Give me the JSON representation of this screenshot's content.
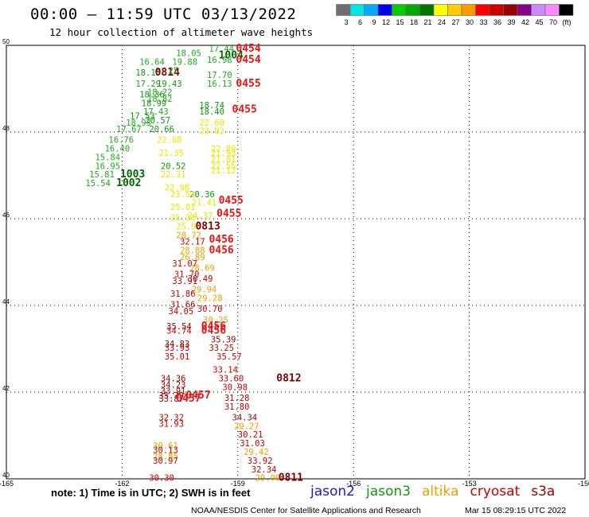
{
  "header": {
    "title": "00:00 – 11:59 UTC 03/13/2022",
    "subtitle": "12 hour collection of altimeter wave heights"
  },
  "colorbar": {
    "colors": [
      "#6e6e6e",
      "#00e5e5",
      "#00aaff",
      "#0000ee",
      "#00cc00",
      "#00aa00",
      "#007700",
      "#ffff00",
      "#ffcc00",
      "#ff9900",
      "#ff0000",
      "#cc0000",
      "#990000",
      "#880088",
      "#cc88ff",
      "#ff88ff",
      "#000000"
    ],
    "labels": [
      "3",
      "6",
      "9",
      "12",
      "15",
      "18",
      "21",
      "24",
      "27",
      "30",
      "33",
      "36",
      "39",
      "42",
      "45",
      "70",
      "(ft)"
    ]
  },
  "footer": {
    "note": "note: 1) Time is in UTC; 2) SWH is in feet",
    "credit": "NOAA/NESDIS Center for Satellite Applications and Research",
    "timestamp": "Mar 15 08:29:15 UTC 2022"
  },
  "legend": [
    {
      "name": "jason2",
      "color": "#1a1adc"
    },
    {
      "name": "jason3",
      "color": "#119911"
    },
    {
      "name": "altika",
      "color": "#f0a000"
    },
    {
      "name": "cryosat",
      "color": "#cc0000"
    },
    {
      "name": "s3a",
      "color": "#990000"
    }
  ],
  "chart_data": {
    "type": "scatter",
    "title": "00:00 – 11:59 UTC 03/13/2022",
    "subtitle": "12 hour collection of altimeter wave heights",
    "xlabel": "",
    "ylabel": "",
    "xlim": [
      -165,
      -150
    ],
    "ylim": [
      40,
      50
    ],
    "x_ticks": [
      "-165",
      "-162",
      "-159",
      "-156",
      "-153",
      "-150"
    ],
    "y_ticks": [
      "50",
      "48",
      "46",
      "44",
      "42",
      "40"
    ],
    "grid": true,
    "legend_position": "bottom",
    "points": [
      {
        "x": -161.55,
        "y": 49.55,
        "text": "16.64",
        "c": "#22aa22"
      },
      {
        "x": -161.65,
        "y": 49.3,
        "text": "18.15",
        "c": "#119911"
      },
      {
        "x": -161.15,
        "y": 49.3,
        "text": "0814",
        "c": "#7a0000",
        "big": true
      },
      {
        "x": -161.65,
        "y": 49.05,
        "text": "17.29",
        "c": "#22aa22"
      },
      {
        "x": -161.1,
        "y": 49.05,
        "text": "19.43",
        "c": "#119911"
      },
      {
        "x": -161.35,
        "y": 48.85,
        "text": "18.22",
        "c": "#22aa22"
      },
      {
        "x": -161.55,
        "y": 48.8,
        "text": "18.36",
        "c": "#119911"
      },
      {
        "x": -161.35,
        "y": 48.7,
        "text": "18.82",
        "c": "#22aa22"
      },
      {
        "x": -161.5,
        "y": 48.6,
        "text": "18.99",
        "c": "#119911"
      },
      {
        "x": -161.45,
        "y": 48.4,
        "text": "17.43",
        "c": "#22aa22"
      },
      {
        "x": -161.8,
        "y": 48.3,
        "text": "17.53",
        "c": "#119911"
      },
      {
        "x": -161.4,
        "y": 48.2,
        "text": "20.57",
        "c": "#119911"
      },
      {
        "x": -161.9,
        "y": 48.15,
        "text": "18.93",
        "c": "#22aa22"
      },
      {
        "x": -162.15,
        "y": 48.0,
        "text": "17.67",
        "c": "#22aa22"
      },
      {
        "x": -161.3,
        "y": 48.0,
        "text": "20.66",
        "c": "#119911"
      },
      {
        "x": -162.35,
        "y": 47.75,
        "text": "16.76",
        "c": "#22aa22"
      },
      {
        "x": -161.1,
        "y": 47.75,
        "text": "22.08",
        "c": "#e8e800"
      },
      {
        "x": -162.45,
        "y": 47.55,
        "text": "16.40",
        "c": "#22aa22"
      },
      {
        "x": -161.05,
        "y": 47.45,
        "text": "21.35",
        "c": "#e8e800"
      },
      {
        "x": -162.7,
        "y": 47.35,
        "text": "15.84",
        "c": "#22aa22"
      },
      {
        "x": -162.7,
        "y": 47.15,
        "text": "16.95",
        "c": "#22aa22"
      },
      {
        "x": -161.0,
        "y": 47.15,
        "text": "20.52",
        "c": "#119911"
      },
      {
        "x": -162.85,
        "y": 46.95,
        "text": "15.81",
        "c": "#22aa22"
      },
      {
        "x": -162.05,
        "y": 46.95,
        "text": "1003",
        "c": "#006600",
        "big": true
      },
      {
        "x": -161.0,
        "y": 46.95,
        "text": "22.31",
        "c": "#e8e800"
      },
      {
        "x": -162.95,
        "y": 46.75,
        "text": "15.54",
        "c": "#22aa22"
      },
      {
        "x": -162.15,
        "y": 46.75,
        "text": "1002",
        "c": "#006600",
        "big": true
      },
      {
        "x": -160.9,
        "y": 46.65,
        "text": "22.98",
        "c": "#e8e800"
      },
      {
        "x": -160.6,
        "y": 49.75,
        "text": "18.05",
        "c": "#22aa22"
      },
      {
        "x": -159.75,
        "y": 49.85,
        "text": "17.44",
        "c": "#22aa22"
      },
      {
        "x": -159.5,
        "y": 49.7,
        "text": "1004",
        "c": "#006600",
        "big": true
      },
      {
        "x": -160.7,
        "y": 49.55,
        "text": "19.88",
        "c": "#22aa22"
      },
      {
        "x": -159.8,
        "y": 49.6,
        "text": "16.98",
        "c": "#22aa22"
      },
      {
        "x": -160.8,
        "y": 49.35,
        "text": "25",
        "c": "#22aa22"
      },
      {
        "x": -159.8,
        "y": 49.25,
        "text": "17.70",
        "c": "#22aa22"
      },
      {
        "x": -159.8,
        "y": 49.05,
        "text": "16.13",
        "c": "#22aa22"
      },
      {
        "x": -160.0,
        "y": 48.55,
        "text": "18.74",
        "c": "#119911"
      },
      {
        "x": -160.0,
        "y": 48.4,
        "text": "18.40",
        "c": "#119911"
      },
      {
        "x": -160.0,
        "y": 48.15,
        "text": "22.60",
        "c": "#e8e800"
      },
      {
        "x": -160.0,
        "y": 47.95,
        "text": "23.02",
        "c": "#e8e800"
      },
      {
        "x": -159.7,
        "y": 47.55,
        "text": "22.89",
        "c": "#e8e800"
      },
      {
        "x": -159.7,
        "y": 47.45,
        "text": "21.93",
        "c": "#e8e800"
      },
      {
        "x": -159.7,
        "y": 47.3,
        "text": "21.81",
        "c": "#e8e800"
      },
      {
        "x": -159.7,
        "y": 47.15,
        "text": "22.55",
        "c": "#e8e800"
      },
      {
        "x": -159.7,
        "y": 47.05,
        "text": "21.12",
        "c": "#e8e800"
      },
      {
        "x": -159.05,
        "y": 49.85,
        "text": "0454",
        "c": "#ee1111",
        "big": true
      },
      {
        "x": -159.05,
        "y": 49.6,
        "text": "0454",
        "c": "#ee1111",
        "big": true
      },
      {
        "x": -159.05,
        "y": 49.05,
        "text": "0455",
        "c": "#ee1111",
        "big": true
      },
      {
        "x": -159.15,
        "y": 48.45,
        "text": "0455",
        "c": "#ee1111",
        "big": true
      },
      {
        "x": -160.25,
        "y": 46.5,
        "text": "20.36",
        "c": "#119911"
      },
      {
        "x": -160.75,
        "y": 46.5,
        "text": "23.51",
        "c": "#e8e800"
      },
      {
        "x": -160.2,
        "y": 46.3,
        "text": "21.41",
        "c": "#e8e800"
      },
      {
        "x": -159.5,
        "y": 46.35,
        "text": "0455",
        "c": "#ee1111",
        "big": true
      },
      {
        "x": -160.75,
        "y": 46.2,
        "text": "25.01",
        "c": "#e8e800"
      },
      {
        "x": -160.3,
        "y": 46.0,
        "text": "24.37",
        "c": "#e8e800"
      },
      {
        "x": -159.55,
        "y": 46.05,
        "text": "0455",
        "c": "#ee1111",
        "big": true
      },
      {
        "x": -160.75,
        "y": 45.95,
        "text": "25.34",
        "c": "#e8e800"
      },
      {
        "x": -160.6,
        "y": 45.75,
        "text": "25.90",
        "c": "#e8e800"
      },
      {
        "x": -160.1,
        "y": 45.75,
        "text": "0813",
        "c": "#7a0000",
        "big": true
      },
      {
        "x": -160.6,
        "y": 45.55,
        "text": "28.72",
        "c": "#f0a000"
      },
      {
        "x": -160.5,
        "y": 45.4,
        "text": "32.17",
        "c": "#cc0000"
      },
      {
        "x": -159.75,
        "y": 45.45,
        "text": "0456",
        "c": "#ee1111",
        "big": true
      },
      {
        "x": -160.5,
        "y": 45.2,
        "text": "28.88",
        "c": "#f0a000"
      },
      {
        "x": -159.75,
        "y": 45.2,
        "text": "0456",
        "c": "#ee1111",
        "big": true
      },
      {
        "x": -160.5,
        "y": 45.05,
        "text": "26.89",
        "c": "#f0a000"
      },
      {
        "x": -160.7,
        "y": 44.9,
        "text": "31.07",
        "c": "#cc0000"
      },
      {
        "x": -160.25,
        "y": 44.8,
        "text": "28.69",
        "c": "#f0a000"
      },
      {
        "x": -160.65,
        "y": 44.65,
        "text": "31.70",
        "c": "#cc0000"
      },
      {
        "x": -160.3,
        "y": 44.55,
        "text": "30.49",
        "c": "#cc0000"
      },
      {
        "x": -160.7,
        "y": 44.5,
        "text": "33.91",
        "c": "#cc0000"
      },
      {
        "x": -160.2,
        "y": 44.3,
        "text": "29.94",
        "c": "#f0a000"
      },
      {
        "x": -160.75,
        "y": 44.2,
        "text": "31.86",
        "c": "#cc0000"
      },
      {
        "x": -160.05,
        "y": 44.1,
        "text": "29.28",
        "c": "#f0a000"
      },
      {
        "x": -160.75,
        "y": 43.95,
        "text": "31.66",
        "c": "#cc0000"
      },
      {
        "x": -160.05,
        "y": 43.85,
        "text": "30.70",
        "c": "#cc0000"
      },
      {
        "x": -160.8,
        "y": 43.8,
        "text": "34.05",
        "c": "#cc0000"
      },
      {
        "x": -159.9,
        "y": 43.6,
        "text": "30.25",
        "c": "#f0a000"
      },
      {
        "x": -160.85,
        "y": 43.45,
        "text": "35.54",
        "c": "#990000"
      },
      {
        "x": -159.95,
        "y": 43.45,
        "text": "0456",
        "c": "#ee1111",
        "big": true
      },
      {
        "x": -160.85,
        "y": 43.35,
        "text": "34.74",
        "c": "#cc0000"
      },
      {
        "x": -159.95,
        "y": 43.35,
        "text": "0456",
        "c": "#ee1111",
        "big": true
      },
      {
        "x": -159.7,
        "y": 43.15,
        "text": "35.39",
        "c": "#990000"
      },
      {
        "x": -160.9,
        "y": 43.05,
        "text": "34.83",
        "c": "#990000"
      },
      {
        "x": -160.9,
        "y": 42.95,
        "text": "33.93",
        "c": "#cc0000"
      },
      {
        "x": -159.75,
        "y": 42.95,
        "text": "33.25",
        "c": "#cc0000"
      },
      {
        "x": -160.9,
        "y": 42.75,
        "text": "35.01",
        "c": "#cc0000"
      },
      {
        "x": -159.55,
        "y": 42.75,
        "text": "35.57",
        "c": "#cc0000"
      },
      {
        "x": -159.65,
        "y": 42.45,
        "text": "33.14",
        "c": "#cc0000"
      },
      {
        "x": -161.0,
        "y": 42.25,
        "text": "34.36",
        "c": "#990000"
      },
      {
        "x": -159.5,
        "y": 42.25,
        "text": "33.60",
        "c": "#cc0000"
      },
      {
        "x": -158.0,
        "y": 42.25,
        "text": "0812",
        "c": "#7a0000",
        "big": true
      },
      {
        "x": -161.0,
        "y": 42.1,
        "text": "34.23",
        "c": "#990000"
      },
      {
        "x": -159.4,
        "y": 42.05,
        "text": "30.98",
        "c": "#cc0000"
      },
      {
        "x": -161.0,
        "y": 41.95,
        "text": "33.91",
        "c": "#990000"
      },
      {
        "x": -161.05,
        "y": 41.85,
        "text": "35.79",
        "c": "#cc0000"
      },
      {
        "x": -160.35,
        "y": 41.85,
        "text": "0457",
        "c": "#ee1111",
        "big": true
      },
      {
        "x": -161.05,
        "y": 41.78,
        "text": "33.87",
        "c": "#990000"
      },
      {
        "x": -160.6,
        "y": 41.78,
        "text": "0457",
        "c": "#ee1111",
        "big": true
      },
      {
        "x": -159.35,
        "y": 41.8,
        "text": "31.28",
        "c": "#cc0000"
      },
      {
        "x": -159.35,
        "y": 41.6,
        "text": "31.80",
        "c": "#cc0000"
      },
      {
        "x": -161.05,
        "y": 41.35,
        "text": "32.32",
        "c": "#cc0000"
      },
      {
        "x": -161.05,
        "y": 41.2,
        "text": "31.93",
        "c": "#cc0000"
      },
      {
        "x": -159.15,
        "y": 41.35,
        "text": "34.34",
        "c": "#990000"
      },
      {
        "x": -159.1,
        "y": 41.15,
        "text": "29.27",
        "c": "#f0a000"
      },
      {
        "x": -159.0,
        "y": 40.95,
        "text": "30.21",
        "c": "#cc0000"
      },
      {
        "x": -158.95,
        "y": 40.75,
        "text": "31.03",
        "c": "#cc0000"
      },
      {
        "x": -161.2,
        "y": 40.7,
        "text": "30.61",
        "c": "#f0a000"
      },
      {
        "x": -161.2,
        "y": 40.6,
        "text": "30.13",
        "c": "#cc0000"
      },
      {
        "x": -158.85,
        "y": 40.55,
        "text": "29.42",
        "c": "#f0a000"
      },
      {
        "x": -161.2,
        "y": 40.45,
        "text": "28.85",
        "c": "#f0a000"
      },
      {
        "x": -161.2,
        "y": 40.35,
        "text": "30.97",
        "c": "#cc0000"
      },
      {
        "x": -158.75,
        "y": 40.35,
        "text": "33.92",
        "c": "#cc0000"
      },
      {
        "x": -158.65,
        "y": 40.15,
        "text": "32.34",
        "c": "#cc0000"
      },
      {
        "x": -161.3,
        "y": 39.95,
        "text": "30.30",
        "c": "#cc0000"
      },
      {
        "x": -158.55,
        "y": 39.95,
        "text": "29.00",
        "c": "#f0a000"
      },
      {
        "x": -157.95,
        "y": 39.95,
        "text": "0811",
        "c": "#7a0000",
        "big": true
      }
    ]
  }
}
